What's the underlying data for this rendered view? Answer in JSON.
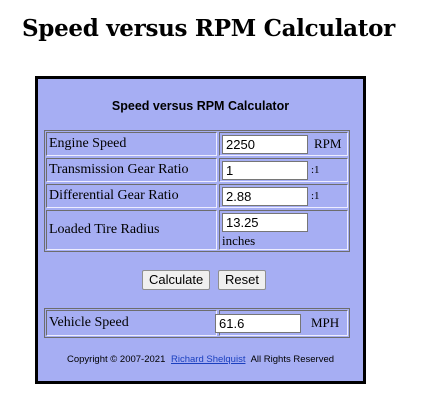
{
  "page": {
    "title": "Speed versus RPM Calculator"
  },
  "calculator": {
    "heading": "Speed versus RPM Calculator",
    "inputs": [
      {
        "label": "Engine Speed",
        "value": "2250",
        "unit": "RPM"
      },
      {
        "label": "Transmission Gear Ratio",
        "value": "1",
        "unit": ":1"
      },
      {
        "label": "Differential Gear Ratio",
        "value": "2.88",
        "unit": ":1"
      },
      {
        "label": "Loaded Tire Radius",
        "value": "13.25",
        "unit": "inches"
      }
    ],
    "buttons": {
      "calculate": "Calculate",
      "reset": "Reset"
    },
    "output": {
      "label": "Vehicle Speed",
      "value": "61.6",
      "unit": "MPH"
    },
    "footer": {
      "copyright": "Copyright © 2007-2021",
      "author_link": "Richard Shelquist",
      "rights": "All Rights Reserved"
    }
  }
}
